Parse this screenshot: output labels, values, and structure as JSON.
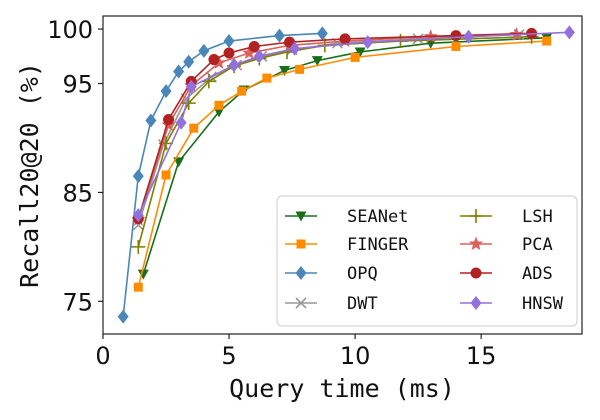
{
  "chart_data": {
    "type": "line",
    "title": "",
    "xlabel": "Query time (ms)",
    "ylabel": "Recall20@20 (%)",
    "xlim": [
      0,
      19
    ],
    "ylim": [
      72,
      101.2
    ],
    "xticks": [
      0,
      5,
      10,
      15
    ],
    "yticks": [
      75,
      85,
      95,
      100
    ],
    "grid": false,
    "legend": "bottom-right",
    "series": [
      {
        "name": "SEANet",
        "color": "#1a6e1a",
        "marker": "triangle-down",
        "x": [
          1.6,
          3.0,
          4.6,
          5.6,
          7.2,
          8.5,
          10.2,
          13.0,
          17.6
        ],
        "y": [
          77.5,
          87.8,
          92.4,
          94.4,
          96.2,
          97.1,
          97.9,
          98.7,
          99.2
        ]
      },
      {
        "name": "FINGER",
        "color": "#ff8c00",
        "marker": "square",
        "x": [
          1.4,
          2.5,
          3.6,
          4.6,
          5.5,
          6.5,
          7.8,
          10.0,
          14.0,
          17.6
        ],
        "y": [
          76.3,
          86.6,
          90.9,
          93.0,
          94.3,
          95.5,
          96.3,
          97.4,
          98.4,
          98.9
        ]
      },
      {
        "name": "OPQ",
        "color": "#4a86b8",
        "marker": "diamond",
        "x": [
          0.8,
          1.4,
          1.9,
          2.5,
          3.0,
          3.4,
          4.0,
          5.0,
          7.0,
          8.7
        ],
        "y": [
          73.6,
          86.5,
          91.6,
          94.3,
          96.1,
          97.0,
          98.0,
          98.9,
          99.4,
          99.6
        ]
      },
      {
        "name": "DWT",
        "color": "#999999",
        "marker": "x",
        "x": [
          1.4,
          2.4,
          3.3,
          4.3,
          5.3,
          6.3,
          7.5,
          9.3,
          12.5,
          16.5
        ],
        "y": [
          82.0,
          89.4,
          93.6,
          95.6,
          96.7,
          97.5,
          98.1,
          98.7,
          99.1,
          99.5
        ]
      },
      {
        "name": "LSH",
        "color": "#7f7f00",
        "marker": "plus",
        "x": [
          1.4,
          2.5,
          3.4,
          4.2,
          5.2,
          6.2,
          7.3,
          8.8,
          11.8,
          17.0
        ],
        "y": [
          80.0,
          89.5,
          93.2,
          95.2,
          96.6,
          97.3,
          97.9,
          98.5,
          98.9,
          99.3
        ]
      },
      {
        "name": "PCA",
        "color": "#d9635c",
        "marker": "star",
        "x": [
          1.4,
          2.6,
          3.5,
          4.6,
          5.8,
          7.4,
          9.6,
          13.0,
          16.4
        ],
        "y": [
          82.5,
          91.2,
          94.8,
          96.9,
          97.8,
          98.5,
          98.9,
          99.3,
          99.5
        ]
      },
      {
        "name": "ADS",
        "color": "#b22222",
        "marker": "circle",
        "x": [
          1.4,
          2.6,
          3.5,
          4.4,
          5.0,
          6.0,
          7.4,
          9.6,
          14.0,
          17.0
        ],
        "y": [
          82.6,
          91.7,
          95.2,
          97.2,
          97.8,
          98.4,
          98.8,
          99.1,
          99.4,
          99.6
        ]
      },
      {
        "name": "HNSW",
        "color": "#9370db",
        "marker": "diamond",
        "x": [
          1.4,
          3.1,
          3.5,
          5.2,
          6.2,
          7.6,
          10.5,
          14.5,
          18.5
        ],
        "y": [
          82.9,
          91.4,
          94.7,
          96.7,
          97.5,
          98.2,
          98.8,
          99.3,
          99.7
        ]
      }
    ]
  }
}
